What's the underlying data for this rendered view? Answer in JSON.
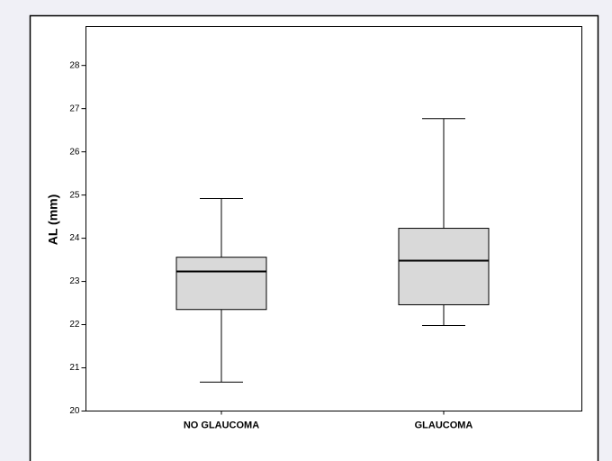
{
  "chart_data": {
    "type": "box",
    "y_label": "AL (mm)",
    "categories": [
      "NO GLAUCOMA",
      "GLAUCOMA"
    ],
    "boxes": [
      {
        "min": 20.67,
        "q1": 22.35,
        "median": 23.23,
        "q3": 23.56,
        "max": 24.92
      },
      {
        "min": 21.98,
        "q1": 22.46,
        "median": 23.48,
        "q3": 24.23,
        "max": 26.77
      }
    ],
    "color": "#d9d9d9",
    "ylim": [
      20,
      28.9
    ],
    "yticks": [
      20,
      21,
      22,
      23,
      24,
      25,
      26,
      27,
      28
    ]
  }
}
